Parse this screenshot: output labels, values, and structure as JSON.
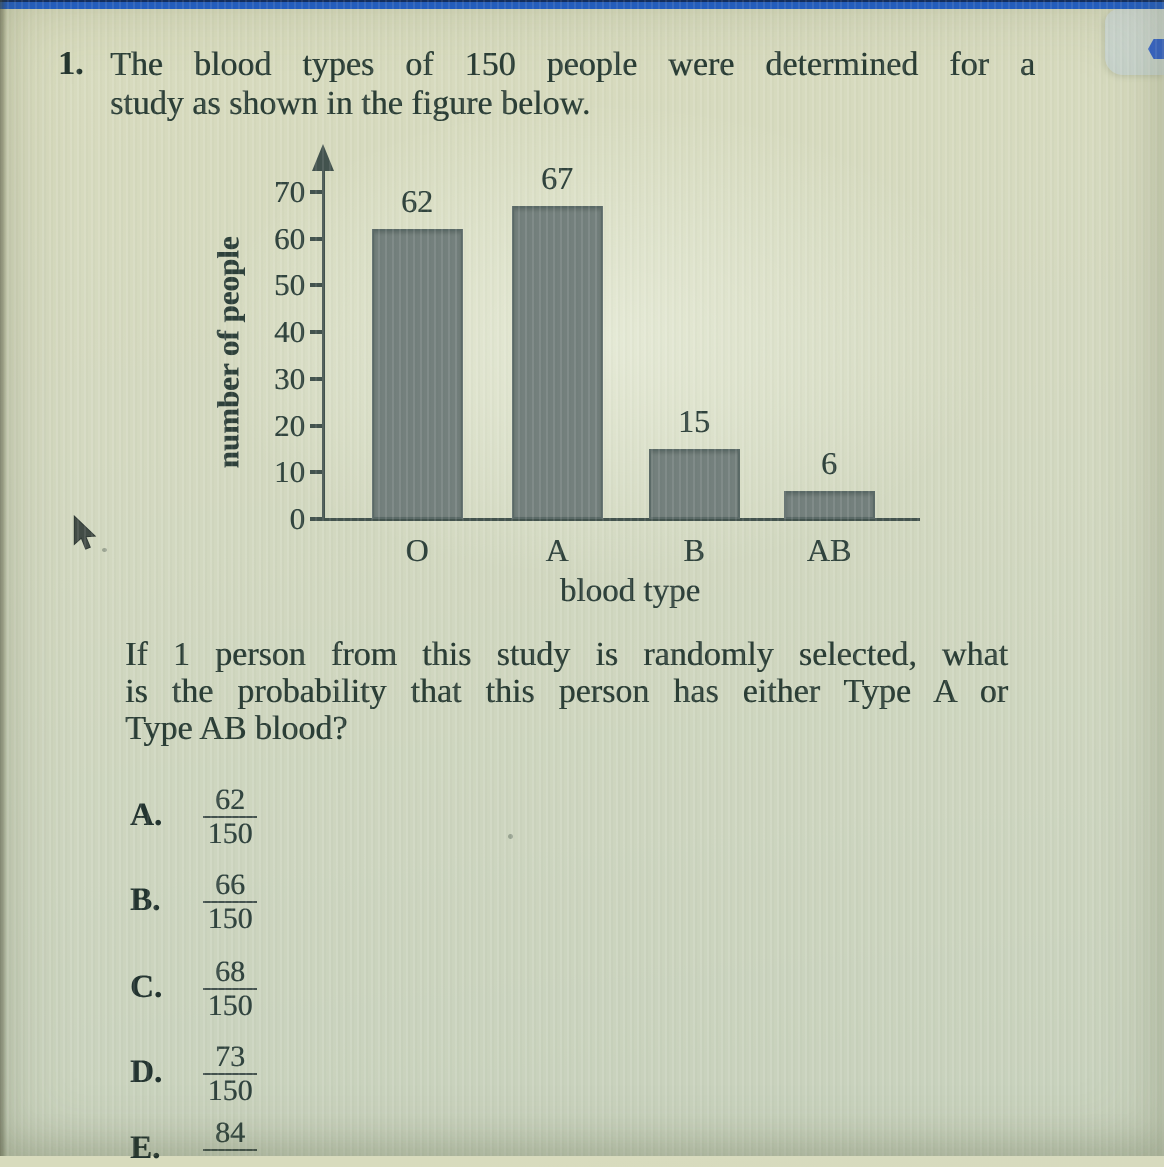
{
  "question": {
    "number": "1.",
    "title_line1": "The blood types of 150 people were determined for a",
    "title_line2": "study as shown in the figure below.",
    "body_line1": "If 1 person from this study is randomly selected, what",
    "body_line2": "is the probability that this person has either Type A or",
    "body_line3": "Type AB blood?"
  },
  "chart_data": {
    "type": "bar",
    "title": "",
    "categories": [
      "O",
      "A",
      "B",
      "AB"
    ],
    "values": [
      62,
      67,
      15,
      6
    ],
    "xlabel": "blood type",
    "ylabel": "number of people",
    "ylim": [
      0,
      70
    ],
    "yticks": [
      0,
      10,
      20,
      30,
      40,
      50,
      60,
      70
    ],
    "grid": false,
    "legend": "none",
    "bar_color": "#74807d",
    "value_labels_shown": true
  },
  "answers": [
    {
      "letter": "A.",
      "numerator": "62",
      "denominator": "150"
    },
    {
      "letter": "B.",
      "numerator": "66",
      "denominator": "150"
    },
    {
      "letter": "C.",
      "numerator": "68",
      "denominator": "150"
    },
    {
      "letter": "D.",
      "numerator": "73",
      "denominator": "150"
    },
    {
      "letter": "E.",
      "numerator": "84",
      "denominator": ""
    }
  ],
  "ui_colors": {
    "accent_blue_bar": "#2160cf",
    "navy_edge": "#0d2a66",
    "page_background": "#d2d8c0"
  }
}
